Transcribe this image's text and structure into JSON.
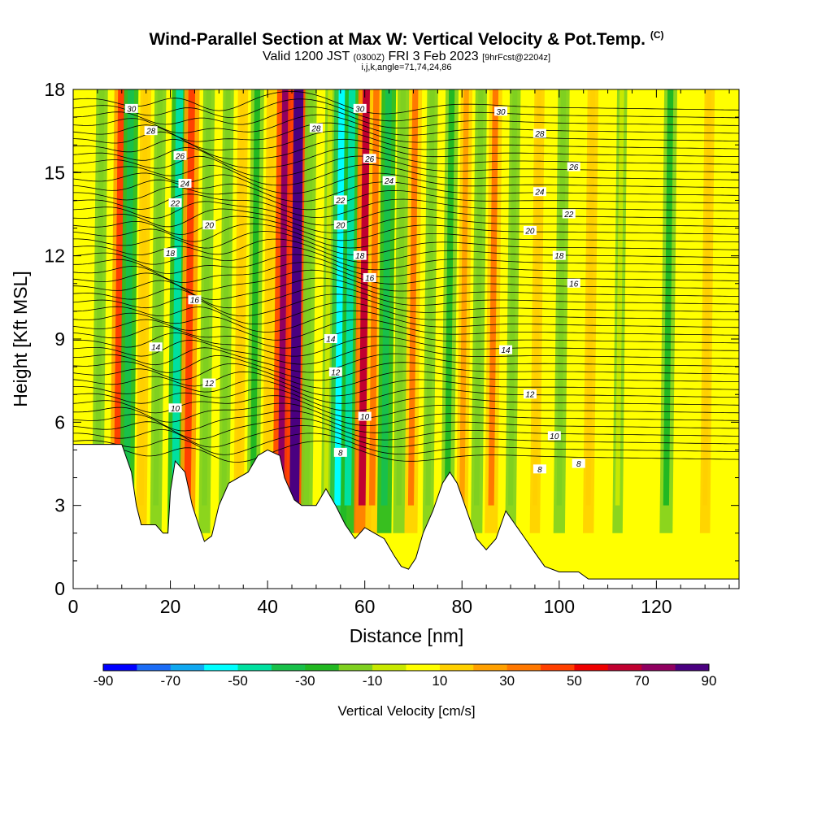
{
  "header": {
    "title": "Wind-Parallel Section at Max W: Vertical Velocity & Pot.Temp.",
    "copyright": "(C)",
    "valid_prefix": "Valid 1200 JST",
    "valid_utc": "(0300Z)",
    "valid_date": "FRI 3 Feb 2023",
    "forecast": "[9hrFcst@2204z]",
    "indices": "i,j,k,angle=71,74,24,86"
  },
  "chart_data": {
    "type": "heatmap",
    "xlabel": "Distance [nm]",
    "ylabel": "Height [Kft MSL]",
    "xlim": [
      0,
      137
    ],
    "ylim": [
      0,
      18
    ],
    "x_ticks": [
      0,
      20,
      40,
      60,
      80,
      100,
      120
    ],
    "y_ticks": [
      0,
      3,
      6,
      9,
      12,
      15,
      18
    ],
    "colorbar": {
      "label": "Vertical Velocity [cm/s]",
      "ticks": [
        -90,
        -70,
        -50,
        -30,
        -10,
        10,
        30,
        50,
        70,
        90
      ],
      "bounds": [
        -90,
        90
      ],
      "colors": [
        "#0000ff",
        "#1c6cf5",
        "#10a8f0",
        "#00ffff",
        "#00e0a0",
        "#19c04a",
        "#22b822",
        "#7fd020",
        "#c8e800",
        "#ffff00",
        "#ffd000",
        "#ffa000",
        "#ff7800",
        "#ff4000",
        "#ee0000",
        "#c00030",
        "#900060",
        "#4a0080"
      ]
    },
    "vertical_velocity_bands": [
      {
        "x": 5,
        "w": -20
      },
      {
        "x": 9,
        "w": 40
      },
      {
        "x": 11,
        "w": -40
      },
      {
        "x": 14,
        "w": 15
      },
      {
        "x": 17,
        "w": -20
      },
      {
        "x": 21,
        "w": -50
      },
      {
        "x": 23.5,
        "w": 45
      },
      {
        "x": 27,
        "w": -20
      },
      {
        "x": 31,
        "w": -15
      },
      {
        "x": 34,
        "w": 10
      },
      {
        "x": 37,
        "w": -30
      },
      {
        "x": 40,
        "w": 15
      },
      {
        "x": 43,
        "w": 75
      },
      {
        "x": 45.5,
        "w": 90
      },
      {
        "x": 48,
        "w": -20
      },
      {
        "x": 52,
        "w": -10
      },
      {
        "x": 54.5,
        "w": -55
      },
      {
        "x": 56.5,
        "w": -45
      },
      {
        "x": 59.5,
        "w": 60
      },
      {
        "x": 61.5,
        "w": 35
      },
      {
        "x": 64,
        "w": -40
      },
      {
        "x": 67,
        "w": -20
      },
      {
        "x": 69.5,
        "w": 30
      },
      {
        "x": 73,
        "w": -15
      },
      {
        "x": 77,
        "w": -30
      },
      {
        "x": 80,
        "w": 20
      },
      {
        "x": 83,
        "w": -20
      },
      {
        "x": 86,
        "w": 30
      },
      {
        "x": 90,
        "w": -15
      },
      {
        "x": 95,
        "w": 10
      },
      {
        "x": 100,
        "w": -20
      },
      {
        "x": 106,
        "w": 15
      },
      {
        "x": 112,
        "w": -10
      },
      {
        "x": 122,
        "w": -30
      },
      {
        "x": 130,
        "w": 10
      }
    ],
    "theta_contour_labels": [
      {
        "x": 12,
        "y": 17.3,
        "text": "30"
      },
      {
        "x": 16,
        "y": 16.5,
        "text": "28"
      },
      {
        "x": 22,
        "y": 15.6,
        "text": "26"
      },
      {
        "x": 23,
        "y": 14.6,
        "text": "24"
      },
      {
        "x": 21,
        "y": 13.9,
        "text": "22"
      },
      {
        "x": 28,
        "y": 13.1,
        "text": "20"
      },
      {
        "x": 20,
        "y": 12.1,
        "text": "18"
      },
      {
        "x": 25,
        "y": 10.4,
        "text": "16"
      },
      {
        "x": 17,
        "y": 8.7,
        "text": "14"
      },
      {
        "x": 28,
        "y": 7.4,
        "text": "12"
      },
      {
        "x": 21,
        "y": 6.5,
        "text": "10"
      },
      {
        "x": 50,
        "y": 16.6,
        "text": "28"
      },
      {
        "x": 59,
        "y": 17.3,
        "text": "30"
      },
      {
        "x": 61,
        "y": 15.5,
        "text": "26"
      },
      {
        "x": 65,
        "y": 14.7,
        "text": "24"
      },
      {
        "x": 55,
        "y": 14.0,
        "text": "22"
      },
      {
        "x": 55,
        "y": 13.1,
        "text": "20"
      },
      {
        "x": 59,
        "y": 12.0,
        "text": "18"
      },
      {
        "x": 61,
        "y": 11.2,
        "text": "16"
      },
      {
        "x": 53,
        "y": 9.0,
        "text": "14"
      },
      {
        "x": 54,
        "y": 7.8,
        "text": "12"
      },
      {
        "x": 60,
        "y": 6.2,
        "text": "10"
      },
      {
        "x": 55,
        "y": 4.9,
        "text": "8"
      },
      {
        "x": 88,
        "y": 17.2,
        "text": "30"
      },
      {
        "x": 96,
        "y": 16.4,
        "text": "28"
      },
      {
        "x": 103,
        "y": 15.2,
        "text": "26"
      },
      {
        "x": 96,
        "y": 14.3,
        "text": "24"
      },
      {
        "x": 102,
        "y": 13.5,
        "text": "22"
      },
      {
        "x": 94,
        "y": 12.9,
        "text": "20"
      },
      {
        "x": 100,
        "y": 12.0,
        "text": "18"
      },
      {
        "x": 103,
        "y": 11.0,
        "text": "16"
      },
      {
        "x": 89,
        "y": 8.6,
        "text": "14"
      },
      {
        "x": 94,
        "y": 7.0,
        "text": "12"
      },
      {
        "x": 99,
        "y": 5.5,
        "text": "10"
      },
      {
        "x": 96,
        "y": 4.3,
        "text": "8"
      },
      {
        "x": 104,
        "y": 4.5,
        "text": "8"
      }
    ],
    "terrain_height": [
      {
        "x": 0,
        "y": 5.2
      },
      {
        "x": 10,
        "y": 5.2
      },
      {
        "x": 12,
        "y": 4.2
      },
      {
        "x": 13,
        "y": 3.0
      },
      {
        "x": 14,
        "y": 2.3
      },
      {
        "x": 17,
        "y": 2.3
      },
      {
        "x": 18.5,
        "y": 2.0
      },
      {
        "x": 19.5,
        "y": 2.0
      },
      {
        "x": 20,
        "y": 3.5
      },
      {
        "x": 21,
        "y": 4.6
      },
      {
        "x": 23,
        "y": 4.2
      },
      {
        "x": 24.5,
        "y": 3.0
      },
      {
        "x": 26,
        "y": 2.2
      },
      {
        "x": 27,
        "y": 1.7
      },
      {
        "x": 28.5,
        "y": 1.9
      },
      {
        "x": 30,
        "y": 3.0
      },
      {
        "x": 32,
        "y": 3.8
      },
      {
        "x": 34,
        "y": 4.0
      },
      {
        "x": 36,
        "y": 4.2
      },
      {
        "x": 38,
        "y": 4.8
      },
      {
        "x": 40,
        "y": 5.0
      },
      {
        "x": 42.5,
        "y": 4.8
      },
      {
        "x": 43.5,
        "y": 4.0
      },
      {
        "x": 45.5,
        "y": 3.2
      },
      {
        "x": 47,
        "y": 3.0
      },
      {
        "x": 50,
        "y": 3.0
      },
      {
        "x": 52,
        "y": 3.6
      },
      {
        "x": 54,
        "y": 3.0
      },
      {
        "x": 56,
        "y": 2.3
      },
      {
        "x": 58,
        "y": 1.8
      },
      {
        "x": 60,
        "y": 2.2
      },
      {
        "x": 62,
        "y": 2.0
      },
      {
        "x": 64,
        "y": 1.8
      },
      {
        "x": 66,
        "y": 1.2
      },
      {
        "x": 67.5,
        "y": 0.8
      },
      {
        "x": 69,
        "y": 0.7
      },
      {
        "x": 70.5,
        "y": 1.1
      },
      {
        "x": 72,
        "y": 2.0
      },
      {
        "x": 74,
        "y": 2.8
      },
      {
        "x": 76,
        "y": 3.8
      },
      {
        "x": 77.5,
        "y": 4.2
      },
      {
        "x": 79,
        "y": 3.8
      },
      {
        "x": 81,
        "y": 2.8
      },
      {
        "x": 83,
        "y": 1.8
      },
      {
        "x": 85,
        "y": 1.4
      },
      {
        "x": 87,
        "y": 1.8
      },
      {
        "x": 89,
        "y": 2.8
      },
      {
        "x": 91,
        "y": 2.3
      },
      {
        "x": 93,
        "y": 1.8
      },
      {
        "x": 95,
        "y": 1.3
      },
      {
        "x": 97,
        "y": 0.8
      },
      {
        "x": 100,
        "y": 0.6
      },
      {
        "x": 104,
        "y": 0.6
      },
      {
        "x": 106,
        "y": 0.35
      },
      {
        "x": 130,
        "y": 0.35
      },
      {
        "x": 137,
        "y": 0.35
      }
    ],
    "grid": false
  }
}
